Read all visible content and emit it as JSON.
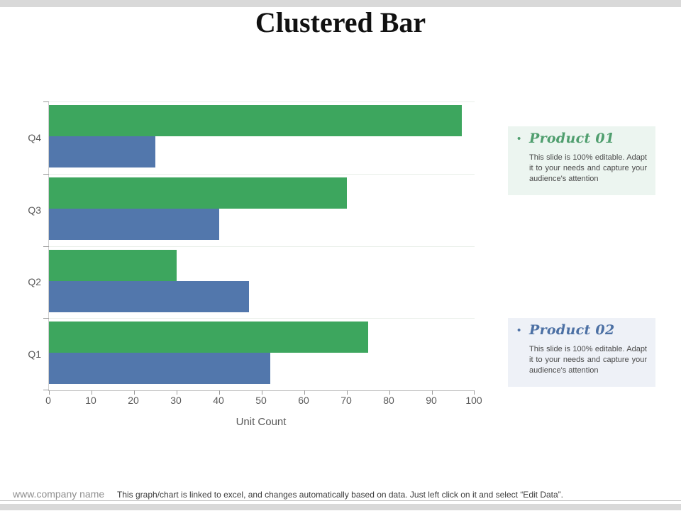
{
  "slide": {
    "title": "Clustered Bar"
  },
  "chart_data": {
    "type": "bar",
    "orientation": "horizontal",
    "title": "",
    "xlabel": "Unit Count",
    "ylabel": "",
    "xlim": [
      0,
      100
    ],
    "x_ticks": [
      0,
      10,
      20,
      30,
      40,
      50,
      60,
      70,
      80,
      90,
      100
    ],
    "grid": true,
    "categories": [
      "Q4",
      "Q3",
      "Q2",
      "Q1"
    ],
    "series": [
      {
        "name": "Product 01",
        "color": "#3da65e",
        "values": [
          97,
          70,
          30,
          75
        ]
      },
      {
        "name": "Product 02",
        "color": "#5277ac",
        "values": [
          25,
          40,
          47,
          52
        ]
      }
    ],
    "legend_position": "right-callouts"
  },
  "callouts": [
    {
      "bullet": "•",
      "title": "Product 01",
      "body": "This slide is 100% editable. Adapt it to your needs and capture your audience's attention",
      "title_color": "#4f9e6e",
      "bg_color": "#ecf5f0"
    },
    {
      "bullet": "•",
      "title": "Product 02",
      "body": "This slide is 100% editable. Adapt it to your needs and capture your audience's attention",
      "title_color": "#4c70a4",
      "bg_color": "#eef1f7"
    }
  ],
  "footer": {
    "company": "www.company name",
    "note": "This graph/chart is linked to excel, and changes automatically based on data. Just left click on it and select “Edit Data”."
  }
}
